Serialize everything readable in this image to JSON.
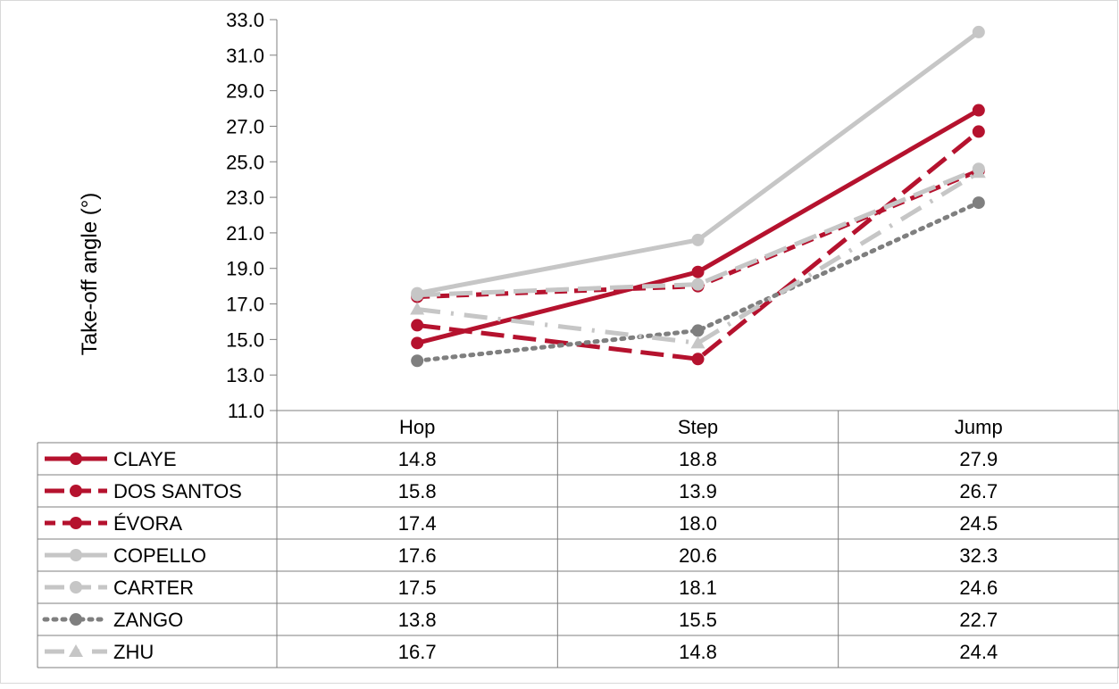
{
  "chart_data": {
    "type": "line",
    "ylabel": "Take-off angle (°)",
    "xlabel": "",
    "categories": [
      "Hop",
      "Step",
      "Jump"
    ],
    "ylim": [
      11.0,
      33.0
    ],
    "yticks": [
      "11.0",
      "13.0",
      "15.0",
      "17.0",
      "19.0",
      "21.0",
      "23.0",
      "25.0",
      "27.0",
      "29.0",
      "31.0",
      "33.0"
    ],
    "grid": false,
    "legend": "data-table",
    "series": [
      {
        "name": "CLAYE",
        "values": [
          14.8,
          18.8,
          27.9
        ],
        "labels": [
          "14.8",
          "18.8",
          "27.9"
        ],
        "color": "#b5122e",
        "dash": "solid",
        "marker": "circle"
      },
      {
        "name": "DOS SANTOS",
        "values": [
          15.8,
          13.9,
          26.7
        ],
        "labels": [
          "15.8",
          "13.9",
          "26.7"
        ],
        "color": "#b5122e",
        "dash": "long-dash",
        "marker": "circle"
      },
      {
        "name": "ÉVORA",
        "values": [
          17.4,
          18.0,
          24.5
        ],
        "labels": [
          "17.4",
          "18.0",
          "24.5"
        ],
        "color": "#b5122e",
        "dash": "dash",
        "marker": "circle"
      },
      {
        "name": "COPELLO",
        "values": [
          17.6,
          20.6,
          32.3
        ],
        "labels": [
          "17.6",
          "20.6",
          "32.3"
        ],
        "color": "#c6c6c6",
        "dash": "solid",
        "marker": "circle"
      },
      {
        "name": "CARTER",
        "values": [
          17.5,
          18.1,
          24.6
        ],
        "labels": [
          "17.5",
          "18.1",
          "24.6"
        ],
        "color": "#c6c6c6",
        "dash": "long-dash",
        "marker": "circle"
      },
      {
        "name": "ZANGO",
        "values": [
          13.8,
          15.5,
          22.7
        ],
        "labels": [
          "13.8",
          "15.5",
          "22.7"
        ],
        "color": "#7f7f7f",
        "dash": "dot",
        "marker": "circle"
      },
      {
        "name": "ZHU",
        "values": [
          16.7,
          14.8,
          24.4
        ],
        "labels": [
          "16.7",
          "14.8",
          "24.4"
        ],
        "color": "#c6c6c6",
        "dash": "long-dash-dot",
        "marker": "triangle"
      }
    ]
  }
}
